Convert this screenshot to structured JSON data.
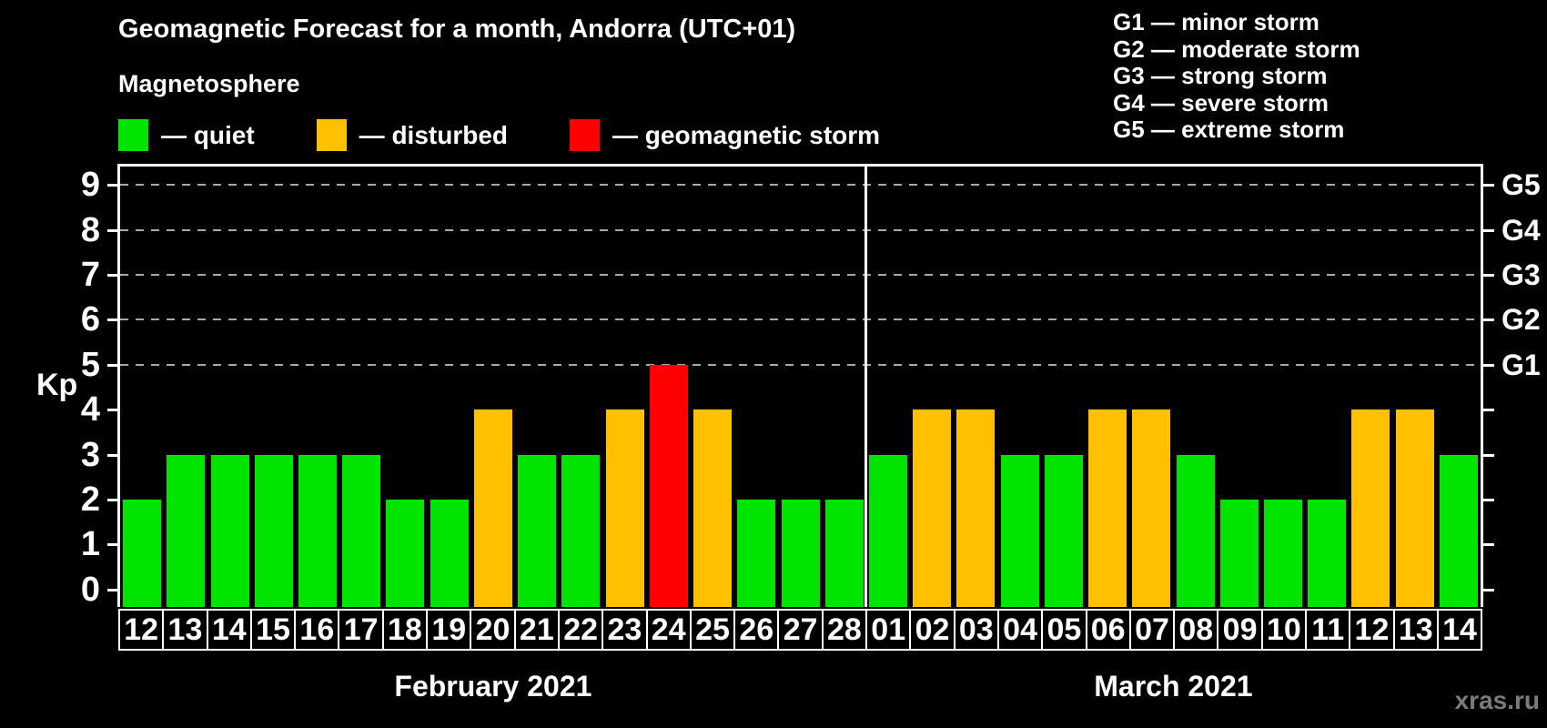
{
  "chart_data": {
    "type": "bar",
    "title": "Geomagnetic Forecast for a month, Andorra (UTC+01)",
    "subtitle": "Magnetosphere",
    "ylabel": "Kp",
    "ylim": [
      -0.39,
      9.41
    ],
    "y_ticks": [
      0,
      1,
      2,
      3,
      4,
      5,
      6,
      7,
      8,
      9
    ],
    "gridlines_at": [
      5,
      6,
      7,
      8,
      9
    ],
    "grid": "dashed horizontal lines at Kp 5-9 only",
    "legend_position": "top-left",
    "legend": [
      {
        "status": "quiet",
        "label": "— quiet",
        "color": "#00e400"
      },
      {
        "status": "disturbed",
        "label": "— disturbed",
        "color": "#ffc000"
      },
      {
        "status": "storm",
        "label": "— geomagnetic storm",
        "color": "#ff0000"
      }
    ],
    "g_scale_legend": [
      "G1 — minor storm",
      "G2 — moderate storm",
      "G3 — strong storm",
      "G4 — severe storm",
      "G5 — extreme storm"
    ],
    "right_axis_labels": [
      {
        "kp": 5,
        "label": "G1"
      },
      {
        "kp": 6,
        "label": "G2"
      },
      {
        "kp": 7,
        "label": "G3"
      },
      {
        "kp": 8,
        "label": "G4"
      },
      {
        "kp": 9,
        "label": "G5"
      }
    ],
    "colors": {
      "quiet": "#00e400",
      "disturbed": "#ffc000",
      "storm": "#ff0000"
    },
    "sections": [
      {
        "label": "February 2021",
        "days": [
          "12",
          "13",
          "14",
          "15",
          "16",
          "17",
          "18",
          "19",
          "20",
          "21",
          "22",
          "23",
          "24",
          "25",
          "26",
          "27",
          "28"
        ],
        "values": [
          2,
          3,
          3,
          3,
          3,
          3,
          2,
          2,
          4,
          3,
          3,
          4,
          5,
          4,
          2,
          2,
          2
        ],
        "status": [
          "quiet",
          "quiet",
          "quiet",
          "quiet",
          "quiet",
          "quiet",
          "quiet",
          "quiet",
          "disturbed",
          "quiet",
          "quiet",
          "disturbed",
          "storm",
          "disturbed",
          "quiet",
          "quiet",
          "quiet"
        ]
      },
      {
        "label": "March 2021",
        "days": [
          "01",
          "02",
          "03",
          "04",
          "05",
          "06",
          "07",
          "08",
          "09",
          "10",
          "11",
          "12",
          "13",
          "14"
        ],
        "values": [
          3,
          4,
          4,
          3,
          3,
          4,
          4,
          3,
          2,
          2,
          2,
          4,
          4,
          3
        ],
        "status": [
          "quiet",
          "disturbed",
          "disturbed",
          "quiet",
          "quiet",
          "disturbed",
          "disturbed",
          "quiet",
          "quiet",
          "quiet",
          "quiet",
          "disturbed",
          "disturbed",
          "quiet"
        ]
      }
    ]
  },
  "watermark": "xras.ru"
}
